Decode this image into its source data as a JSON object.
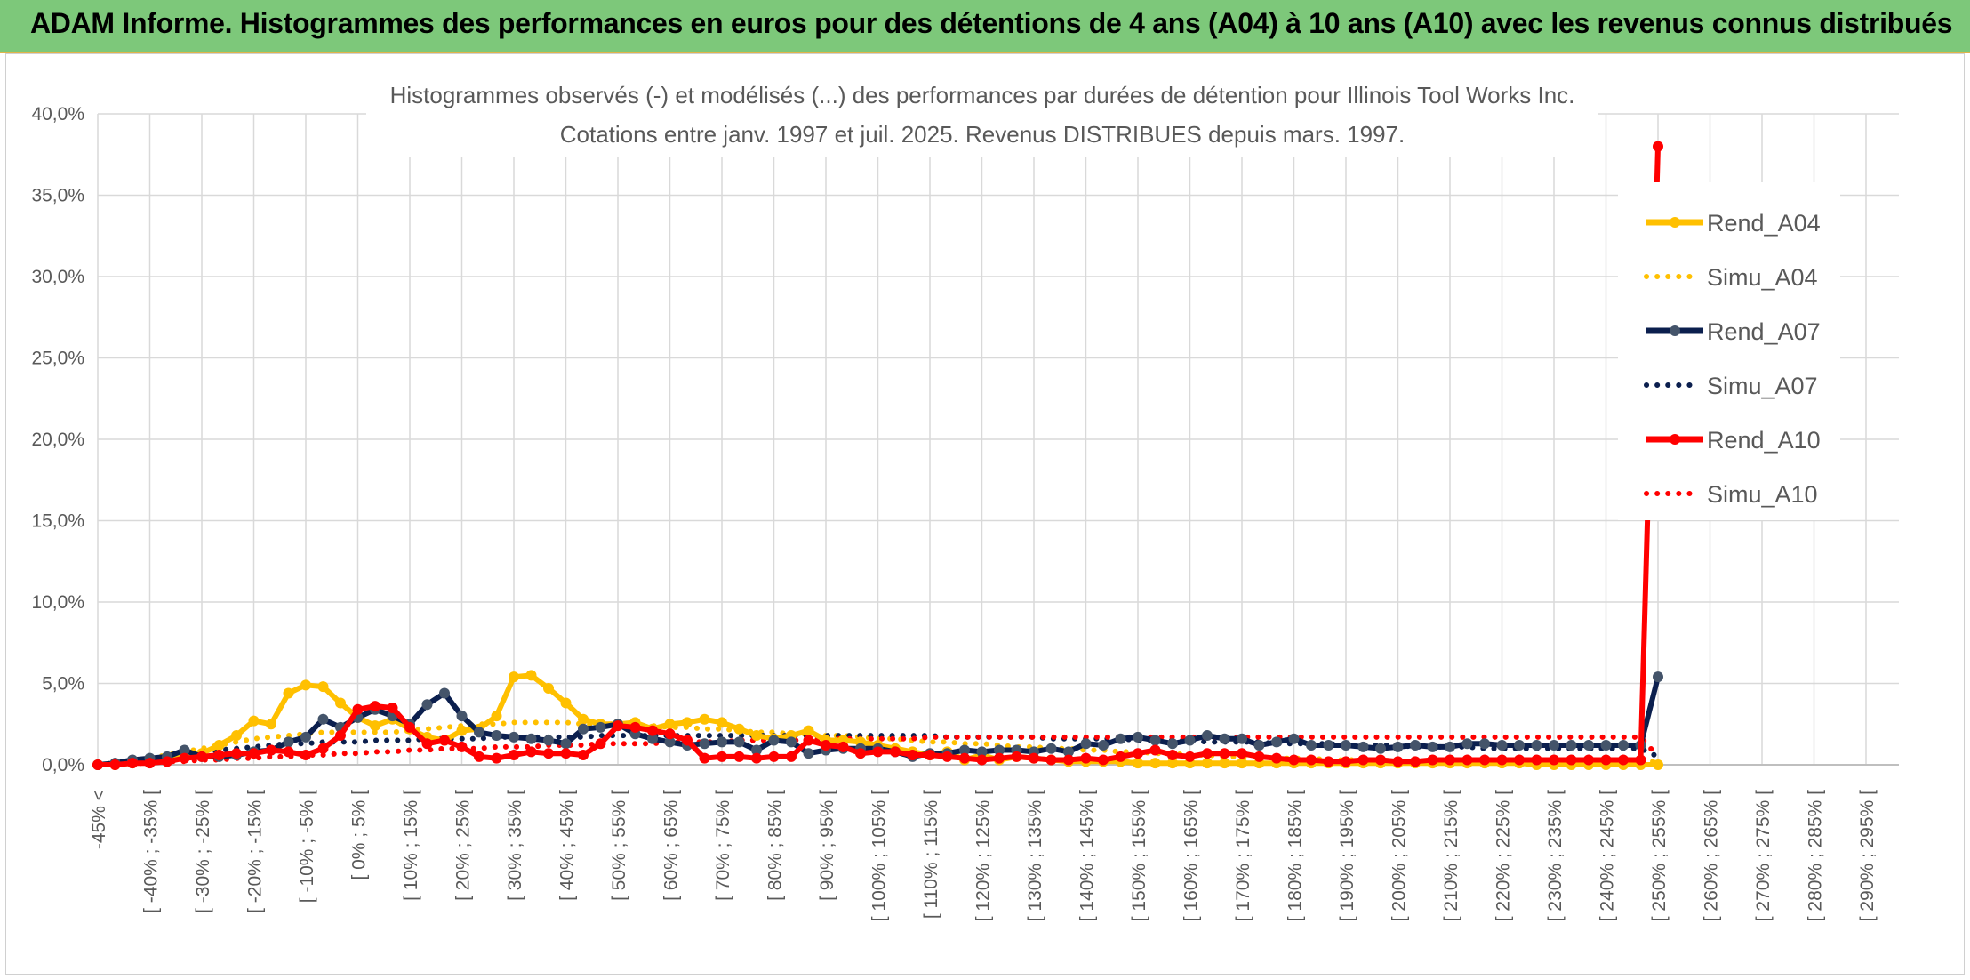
{
  "banner": {
    "title": "ADAM Informe. Histogrammes des performances en euros pour des détentions de 4 ans (A04) à 10 ans (A10) avec les revenus connus distribués"
  },
  "chart_data": {
    "type": "line",
    "title": "Histogrammes observés (-) et modélisés (...) des performances par durées de détention pour Illinois Tool Works Inc.",
    "subtitle": "Cotations entre janv. 1997 et juil. 2025. Revenus DISTRIBUES depuis mars. 1997.",
    "ylim": [
      0,
      40
    ],
    "yticks": [
      "0,0%",
      "5,0%",
      "10,0%",
      "15,0%",
      "20,0%",
      "25,0%",
      "30,0%",
      "35,0%",
      "40,0%"
    ],
    "xticks": [
      "-45% <",
      "[ -40% ; -35% [",
      "[ -30% ; -25% [",
      "[ -20% ; -15% [",
      "[ -10% ; -5% [",
      "[ 0% ; 5% [",
      "[ 10% ; 15% [",
      "[ 20% ; 25% [",
      "[ 30% ; 35% [",
      "[ 40% ; 45% [",
      "[ 50% ; 55% [",
      "[ 60% ; 65% [",
      "[ 70% ; 75% [",
      "[ 80% ; 85% [",
      "[ 90% ; 95% [",
      "[ 100% ; 105% [",
      "[ 110% ; 115% [",
      "[ 120% ; 125% [",
      "[ 130% ; 135% [",
      "[ 140% ; 145% [",
      "[ 150% ; 155% [",
      "[ 160% ; 165% [",
      "[ 170% ; 175% [",
      "[ 180% ; 185% [",
      "[ 190% ; 195% [",
      "[ 200% ; 205% [",
      "[ 210% ; 215% [",
      "[ 220% ; 225% [",
      "[ 230% ; 235% [",
      "[ 240% ; 245% [",
      "[ 250% ; 255% [",
      "[ 260% ; 265% [",
      "[ 270% ; 275% [",
      "[ 280% ; 285% [",
      "[ 290% ; 295% ["
    ],
    "grid": true,
    "legend_position": "right",
    "series": [
      {
        "name": "Rend_A04",
        "style": "solid",
        "color": "#ffc000",
        "values": [
          0,
          0,
          0.1,
          0.2,
          0.3,
          0.5,
          0.7,
          1.2,
          1.8,
          2.7,
          2.5,
          4.4,
          4.9,
          4.8,
          3.8,
          2.9,
          2.4,
          2.8,
          2.2,
          1.7,
          1.5,
          2.1,
          2.2,
          3,
          5.4,
          5.5,
          4.7,
          3.8,
          2.8,
          2.5,
          2.5,
          2.6,
          2.2,
          2.5,
          2.6,
          2.8,
          2.6,
          2.2,
          1.8,
          1.6,
          1.8,
          2.1,
          1.5,
          1.5,
          1.4,
          1.2,
          1,
          0.8,
          0.6,
          0.8,
          0.3,
          0.6,
          0.3,
          0.5,
          0.4,
          0.3,
          0.2,
          0.2,
          0.2,
          0.2,
          0.1,
          0.1,
          0.1,
          0.1,
          0.1,
          0.1,
          0.1,
          0.1,
          0.1,
          0.1,
          0.1,
          0.1,
          0.1,
          0.1,
          0.1,
          0.1,
          0.1,
          0.1,
          0.1,
          0.1,
          0.1,
          0.1,
          0.1,
          0,
          0,
          0,
          0,
          0,
          0,
          0,
          0
        ]
      },
      {
        "name": "Simu_A04",
        "style": "dotted",
        "color": "#ffc000",
        "values": [
          0,
          0.1,
          0.2,
          0.4,
          0.6,
          0.8,
          1,
          1.2,
          1.4,
          1.6,
          1.7,
          1.8,
          1.9,
          2,
          2,
          2,
          2,
          2,
          2.1,
          2.2,
          2.3,
          2.4,
          2.5,
          2.5,
          2.6,
          2.6,
          2.6,
          2.6,
          2.5,
          2.5,
          2.5,
          2.4,
          2.4,
          2.3,
          2.3,
          2.2,
          2.2,
          2.1,
          2,
          2,
          1.9,
          1.9,
          1.8,
          1.8,
          1.7,
          1.6,
          1.6,
          1.5,
          1.4,
          1.4,
          1.3,
          1.3,
          1.2,
          1.1,
          1.1,
          1,
          1,
          0.9,
          0.9,
          0.8,
          0.8,
          0.7,
          0.7,
          0.6,
          0.6,
          0.5,
          0.5,
          0.5,
          0.4,
          0.4,
          0.4,
          0.3,
          0.3,
          0.3,
          0.3,
          0.2,
          0.2,
          0.2,
          0.2,
          0.2,
          0.2,
          0.2,
          0.2,
          0.2,
          0.2,
          0.2,
          0.2,
          0.2,
          0.2,
          0.2,
          0.2
        ]
      },
      {
        "name": "Rend_A07",
        "style": "solid",
        "color": "#0b1f4e",
        "values": [
          0,
          0.1,
          0.3,
          0.4,
          0.5,
          0.9,
          0.5,
          0.5,
          0.6,
          0.8,
          0.9,
          1.4,
          1.7,
          2.8,
          2.3,
          2.9,
          3.4,
          3,
          2.5,
          3.7,
          4.4,
          3,
          2,
          1.8,
          1.7,
          1.6,
          1.5,
          1.3,
          2.2,
          2.3,
          2.5,
          1.9,
          1.6,
          1.4,
          1.2,
          1.3,
          1.4,
          1.4,
          0.9,
          1.5,
          1.4,
          0.7,
          0.9,
          1,
          1,
          1,
          0.8,
          0.5,
          0.7,
          0.7,
          0.9,
          0.8,
          0.9,
          0.9,
          0.8,
          1,
          0.8,
          1.3,
          1.2,
          1.6,
          1.7,
          1.5,
          1.3,
          1.5,
          1.8,
          1.6,
          1.6,
          1.2,
          1.4,
          1.6,
          1.2,
          1.2,
          1.2,
          1.1,
          1,
          1.1,
          1.2,
          1.1,
          1.1,
          1.3,
          1.3,
          1.2,
          1.2,
          1.2,
          1.2,
          1.2,
          1.2,
          1.2,
          1.2,
          1.2,
          5.4
        ]
      },
      {
        "name": "Simu_A07",
        "style": "dotted",
        "color": "#0b1f4e",
        "values": [
          0,
          0.1,
          0.2,
          0.3,
          0.5,
          0.6,
          0.8,
          0.9,
          1,
          1.1,
          1.2,
          1.3,
          1.3,
          1.4,
          1.4,
          1.4,
          1.5,
          1.5,
          1.5,
          1.6,
          1.6,
          1.6,
          1.6,
          1.7,
          1.7,
          1.7,
          1.7,
          1.7,
          1.7,
          1.8,
          1.8,
          1.8,
          1.8,
          1.8,
          1.8,
          1.8,
          1.8,
          1.8,
          1.8,
          1.8,
          1.8,
          1.8,
          1.8,
          1.8,
          1.8,
          1.8,
          1.8,
          1.8,
          1.8,
          1.7,
          1.7,
          1.7,
          1.7,
          1.7,
          1.7,
          1.6,
          1.6,
          1.6,
          1.6,
          1.6,
          1.5,
          1.5,
          1.5,
          1.5,
          1.4,
          1.4,
          1.4,
          1.4,
          1.3,
          1.3,
          1.3,
          1.3,
          1.2,
          1.2,
          1.2,
          1.2,
          1.1,
          1.1,
          1.1,
          1.1,
          1,
          1,
          1,
          1,
          1,
          1,
          1,
          1,
          1,
          1,
          0.5
        ]
      },
      {
        "name": "Rend_A10",
        "style": "solid",
        "color": "#ff0000",
        "values": [
          0,
          0,
          0.1,
          0.1,
          0.2,
          0.4,
          0.5,
          0.6,
          0.7,
          0.7,
          0.9,
          0.8,
          0.6,
          1,
          1.8,
          3.4,
          3.6,
          3.5,
          2.3,
          1.3,
          1.5,
          1.1,
          0.5,
          0.4,
          0.6,
          0.8,
          0.7,
          0.7,
          0.6,
          1.3,
          2.4,
          2.3,
          2.1,
          1.9,
          1.5,
          0.4,
          0.5,
          0.5,
          0.4,
          0.5,
          0.5,
          1.5,
          1.2,
          1.1,
          0.7,
          0.8,
          0.8,
          0.6,
          0.6,
          0.5,
          0.4,
          0.3,
          0.4,
          0.5,
          0.4,
          0.3,
          0.3,
          0.4,
          0.3,
          0.5,
          0.7,
          0.9,
          0.6,
          0.5,
          0.7,
          0.7,
          0.7,
          0.5,
          0.4,
          0.3,
          0.3,
          0.2,
          0.2,
          0.3,
          0.3,
          0.2,
          0.2,
          0.3,
          0.3,
          0.3,
          0.3,
          0.3,
          0.3,
          0.3,
          0.3,
          0.3,
          0.3,
          0.3,
          0.3,
          0.3,
          38
        ]
      },
      {
        "name": "Simu_A10",
        "style": "dotted",
        "color": "#ff0000",
        "values": [
          0,
          0.1,
          0.1,
          0.1,
          0.2,
          0.2,
          0.3,
          0.3,
          0.4,
          0.4,
          0.5,
          0.5,
          0.6,
          0.6,
          0.7,
          0.7,
          0.8,
          0.8,
          0.9,
          0.9,
          1,
          1,
          1,
          1.1,
          1.1,
          1.1,
          1.2,
          1.2,
          1.2,
          1.3,
          1.3,
          1.3,
          1.3,
          1.4,
          1.4,
          1.4,
          1.4,
          1.5,
          1.5,
          1.5,
          1.5,
          1.5,
          1.6,
          1.6,
          1.6,
          1.6,
          1.6,
          1.6,
          1.7,
          1.7,
          1.7,
          1.7,
          1.7,
          1.7,
          1.7,
          1.7,
          1.7,
          1.7,
          1.7,
          1.7,
          1.7,
          1.7,
          1.7,
          1.7,
          1.7,
          1.7,
          1.7,
          1.7,
          1.7,
          1.7,
          1.7,
          1.7,
          1.7,
          1.7,
          1.7,
          1.7,
          1.7,
          1.7,
          1.7,
          1.7,
          1.7,
          1.7,
          1.7,
          1.7,
          1.7,
          1.7,
          1.7,
          1.7,
          1.7,
          1.7,
          0.5
        ]
      }
    ]
  }
}
